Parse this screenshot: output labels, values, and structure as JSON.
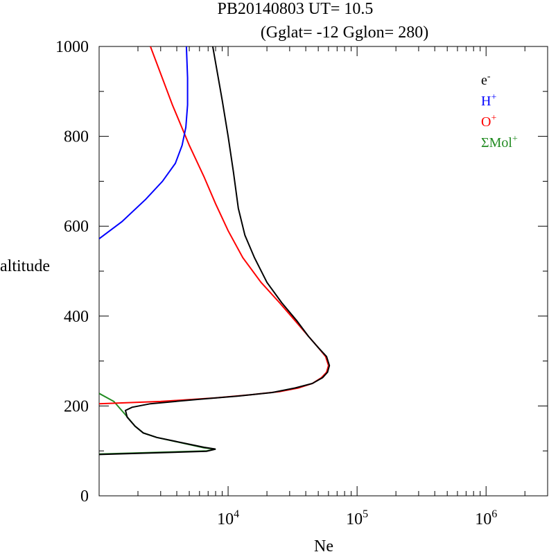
{
  "chart_data": {
    "type": "line",
    "title_line1": "PB20140803   UT=  10.5",
    "title_line2": "(Gglat= -12   Gglon=  280)",
    "xlabel": "Ne",
    "ylabel": "altitude",
    "x_scale": "log",
    "xlim": [
      1000,
      3000000
    ],
    "ylim": [
      0,
      1000
    ],
    "y_ticks": [
      "0",
      "200",
      "400",
      "600",
      "800",
      "1000"
    ],
    "x_ticks": [
      {
        "value": 10000,
        "base": "10",
        "exp": "4"
      },
      {
        "value": 100000,
        "base": "10",
        "exp": "5"
      },
      {
        "value": 1000000,
        "base": "10",
        "exp": "6"
      }
    ],
    "legend_position": "top-right",
    "grid": false,
    "series": [
      {
        "name": "ΣMol+",
        "legend_base": "ΣMol",
        "legend_sup": "+",
        "color": "#228b22",
        "points": [
          [
            1000,
            228
          ],
          [
            1300,
            210
          ],
          [
            1550,
            185
          ],
          [
            1900,
            155
          ],
          [
            2200,
            140
          ],
          [
            2800,
            130
          ],
          [
            6500,
            107
          ],
          [
            8000,
            104
          ],
          [
            6800,
            100
          ],
          [
            1000,
            93
          ]
        ]
      },
      {
        "name": "O+",
        "legend_base": "O",
        "legend_sup": "+",
        "color": "#ff0000",
        "points": [
          [
            1000,
            205
          ],
          [
            3000,
            210
          ],
          [
            8000,
            218
          ],
          [
            15000,
            225
          ],
          [
            25000,
            232
          ],
          [
            35000,
            240
          ],
          [
            45000,
            250
          ],
          [
            53000,
            263
          ],
          [
            58000,
            275
          ],
          [
            60000,
            290
          ],
          [
            57000,
            310
          ],
          [
            50000,
            330
          ],
          [
            42000,
            355
          ],
          [
            33000,
            390
          ],
          [
            25000,
            430
          ],
          [
            18000,
            475
          ],
          [
            13000,
            530
          ],
          [
            10000,
            590
          ],
          [
            8000,
            650
          ],
          [
            6500,
            710
          ],
          [
            5000,
            780
          ],
          [
            3700,
            870
          ],
          [
            2500,
            1000
          ]
        ]
      },
      {
        "name": "H+",
        "legend_base": "H",
        "legend_sup": "+",
        "color": "#0000ff",
        "points": [
          [
            1000,
            572
          ],
          [
            1500,
            610
          ],
          [
            2300,
            660
          ],
          [
            3100,
            700
          ],
          [
            3900,
            740
          ],
          [
            4400,
            780
          ],
          [
            4700,
            820
          ],
          [
            4850,
            870
          ],
          [
            4850,
            930
          ],
          [
            4750,
            1000
          ]
        ]
      },
      {
        "name": "e-",
        "legend_base": "e",
        "legend_sup": "-",
        "color": "#000000",
        "points": [
          [
            1000,
            92
          ],
          [
            6800,
            99
          ],
          [
            8000,
            104
          ],
          [
            6500,
            108
          ],
          [
            2800,
            130
          ],
          [
            2200,
            140
          ],
          [
            1900,
            155
          ],
          [
            1650,
            175
          ],
          [
            1600,
            190
          ],
          [
            1800,
            197
          ],
          [
            2500,
            205
          ],
          [
            6000,
            215
          ],
          [
            12000,
            222
          ],
          [
            22000,
            230
          ],
          [
            33000,
            240
          ],
          [
            45000,
            250
          ],
          [
            54000,
            263
          ],
          [
            59000,
            275
          ],
          [
            61000,
            290
          ],
          [
            58000,
            310
          ],
          [
            50000,
            330
          ],
          [
            42000,
            355
          ],
          [
            34000,
            390
          ],
          [
            26000,
            430
          ],
          [
            20000,
            475
          ],
          [
            16000,
            530
          ],
          [
            13500,
            580
          ],
          [
            12000,
            640
          ],
          [
            11000,
            720
          ],
          [
            10000,
            800
          ],
          [
            9000,
            880
          ],
          [
            7600,
            1000
          ]
        ]
      }
    ]
  }
}
